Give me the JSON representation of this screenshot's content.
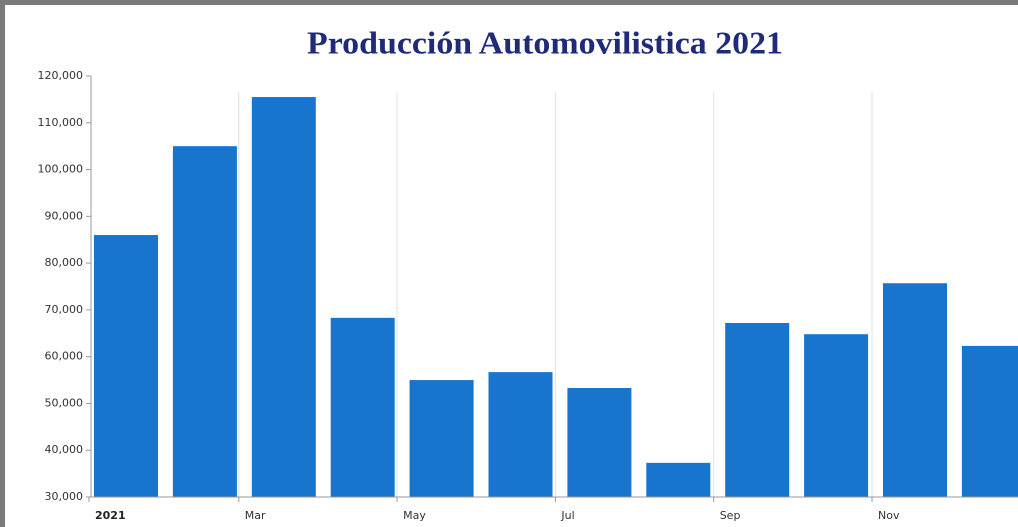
{
  "chart_data": {
    "type": "bar",
    "title": "Producción Automovilistica 2021",
    "categories": [
      "2021",
      null,
      "Mar",
      null,
      "May",
      null,
      "Jul",
      null,
      "Sep",
      null,
      "Nov",
      null
    ],
    "values": [
      86000,
      105000,
      115500,
      68300,
      55000,
      56700,
      53300,
      37300,
      67200,
      64800,
      75700,
      62300
    ],
    "color": "#1874cd",
    "ylim": [
      30000,
      120000
    ],
    "yticks": [
      {
        "value": 30000,
        "label": "30,000"
      },
      {
        "value": 40000,
        "label": "40,000"
      },
      {
        "value": 50000,
        "label": "50,000"
      },
      {
        "value": 60000,
        "label": "60,000"
      },
      {
        "value": 70000,
        "label": "70,000"
      },
      {
        "value": 80000,
        "label": "80,000"
      },
      {
        "value": 90000,
        "label": "90,000"
      },
      {
        "value": 100000,
        "label": "100,000"
      },
      {
        "value": 110000,
        "label": "110,000"
      },
      {
        "value": 120000,
        "label": "120,000"
      }
    ],
    "grid": true
  }
}
